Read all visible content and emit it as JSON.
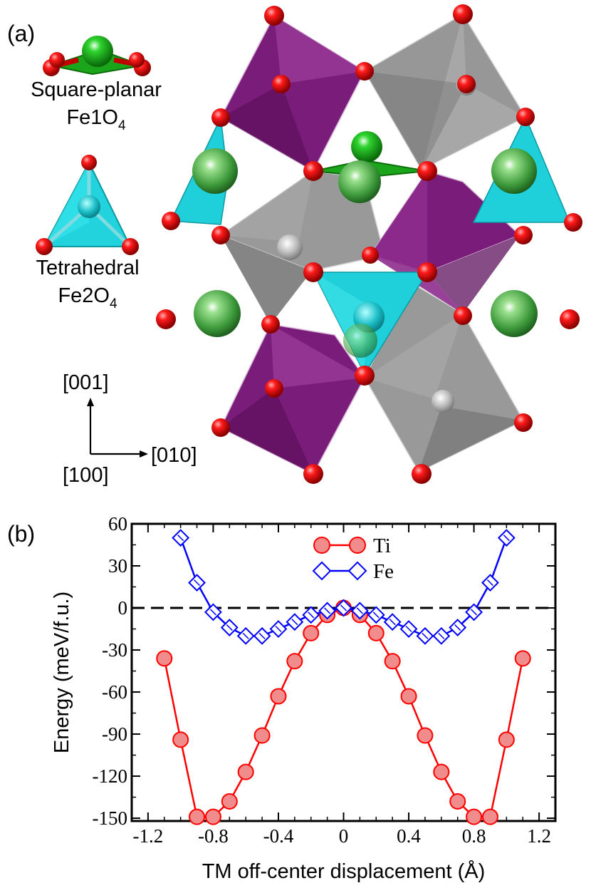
{
  "panel_a": {
    "label": "(a)",
    "square_planar": {
      "line1": "Square-planar",
      "formula": "Fe1O",
      "sub": "4"
    },
    "tetrahedral": {
      "line1": "Tetrahedral",
      "formula": "Fe2O",
      "sub": "4"
    },
    "axes": {
      "up": "[001]",
      "right": "[010]",
      "origin": "[100]"
    },
    "colors": {
      "octa_purple": "#7a1c7a",
      "octa_gray": "#8c8c8c",
      "tetra_cyan": "#22cfd8",
      "oxygen": "#e00000",
      "fe1": "#1faa1f",
      "ba": "#3c9a3c"
    }
  },
  "panel_b": {
    "label": "(b)"
  },
  "chart_data": {
    "type": "line",
    "xlabel": "TM off-center displacement (Å)",
    "ylabel": "Energy (meV/f.u.)",
    "xlim": [
      -1.3,
      1.3
    ],
    "ylim": [
      -152,
      60
    ],
    "xticks": [
      -1.2,
      -0.8,
      -0.4,
      0,
      0.4,
      0.8,
      1.2
    ],
    "xtick_labels": [
      "-1.2",
      "-0.8",
      "-0.4",
      "0",
      "0.4",
      "0.8",
      "1.2"
    ],
    "yticks": [
      60,
      30,
      0,
      -30,
      -60,
      -90,
      -120,
      -150
    ],
    "ytick_labels": [
      "60",
      "30",
      "0",
      "-30",
      "-60",
      "-90",
      "-120",
      "-150"
    ],
    "zero_line": true,
    "legend": "top-center",
    "series": [
      {
        "name": "Ti",
        "color": "#ff0000",
        "marker": "circle",
        "x": [
          -1.1,
          -1.0,
          -0.9,
          -0.8,
          -0.7,
          -0.6,
          -0.5,
          -0.4,
          -0.3,
          -0.2,
          -0.1,
          0,
          0.1,
          0.2,
          0.3,
          0.4,
          0.5,
          0.6,
          0.7,
          0.8,
          0.9,
          1.0,
          1.1
        ],
        "y": [
          -36,
          -94,
          -149,
          -149,
          -138,
          -117,
          -91,
          -63,
          -38,
          -18,
          -5,
          0,
          -5,
          -18,
          -38,
          -63,
          -91,
          -117,
          -138,
          -149,
          -149,
          -94,
          -36
        ]
      },
      {
        "name": "Fe",
        "color": "#0000ff",
        "marker": "diamond",
        "x": [
          -1.0,
          -0.9,
          -0.8,
          -0.7,
          -0.6,
          -0.5,
          -0.4,
          -0.3,
          -0.2,
          -0.1,
          0,
          0.1,
          0.2,
          0.3,
          0.4,
          0.5,
          0.6,
          0.7,
          0.8,
          0.9,
          1.0
        ],
        "y": [
          50,
          18,
          -3,
          -14,
          -20,
          -20,
          -15,
          -10,
          -5,
          -2,
          0,
          -2,
          -5,
          -10,
          -15,
          -20,
          -20,
          -14,
          -3,
          18,
          50
        ]
      }
    ]
  }
}
